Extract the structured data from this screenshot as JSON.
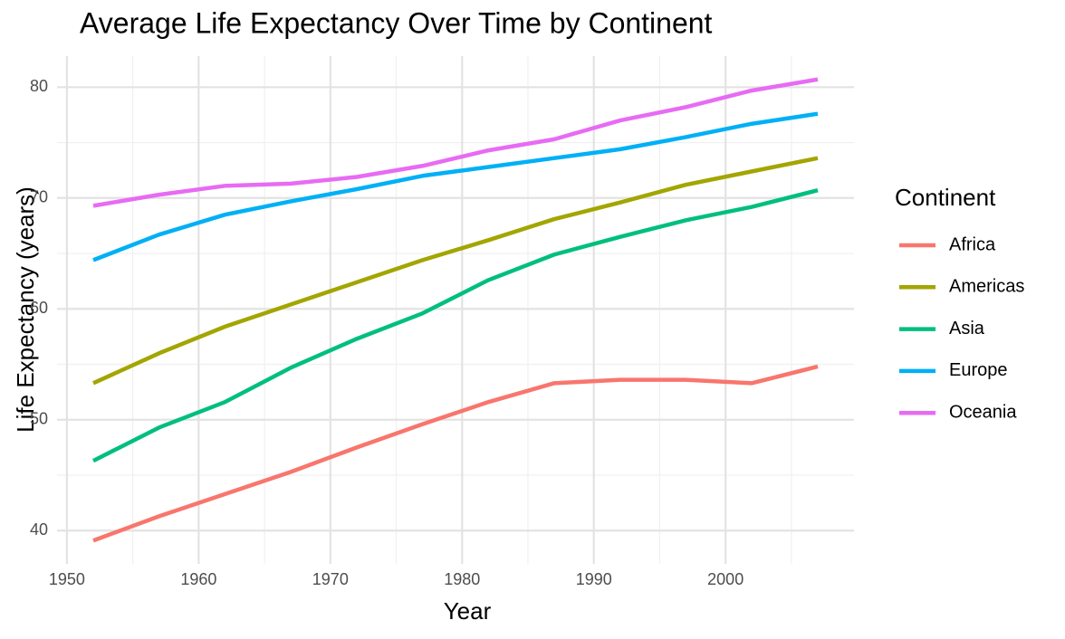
{
  "chart_data": {
    "type": "line",
    "title": "Average Life Expectancy Over Time by Continent",
    "x_label": "Year",
    "y_label": "Life Expectancy (years)",
    "legend_title": "Continent",
    "legend_position": "right",
    "grid": true,
    "x": [
      1952,
      1957,
      1962,
      1967,
      1972,
      1977,
      1982,
      1987,
      1992,
      1997,
      2002,
      2007
    ],
    "series": [
      {
        "name": "Africa",
        "color": "#F8766D",
        "values": [
          39.1,
          41.3,
          43.3,
          45.3,
          47.5,
          49.6,
          51.6,
          53.3,
          53.6,
          53.6,
          53.3,
          54.8
        ]
      },
      {
        "name": "Americas",
        "color": "#A3A500",
        "values": [
          53.3,
          56.0,
          58.4,
          60.4,
          62.4,
          64.4,
          66.2,
          68.1,
          69.6,
          71.2,
          72.4,
          73.6
        ]
      },
      {
        "name": "Asia",
        "color": "#00BF7D",
        "values": [
          46.3,
          49.3,
          51.6,
          54.7,
          57.3,
          59.6,
          62.6,
          64.9,
          66.5,
          68.0,
          69.2,
          70.7
        ]
      },
      {
        "name": "Europe",
        "color": "#00B0F6",
        "values": [
          64.4,
          66.7,
          68.5,
          69.7,
          70.8,
          72.0,
          72.8,
          73.6,
          74.4,
          75.5,
          76.7,
          77.6
        ]
      },
      {
        "name": "Oceania",
        "color": "#E76BF3",
        "values": [
          69.3,
          70.3,
          71.1,
          71.3,
          71.9,
          72.9,
          74.3,
          75.3,
          77.0,
          78.2,
          79.7,
          80.7
        ]
      }
    ],
    "xlim": [
      1949.25,
      2009.75
    ],
    "xticks": [
      1950,
      1960,
      1970,
      1980,
      1990,
      2000
    ],
    "ylim": [
      37.0,
      82.8
    ],
    "yticks": [
      40,
      50,
      60,
      70,
      80
    ]
  }
}
